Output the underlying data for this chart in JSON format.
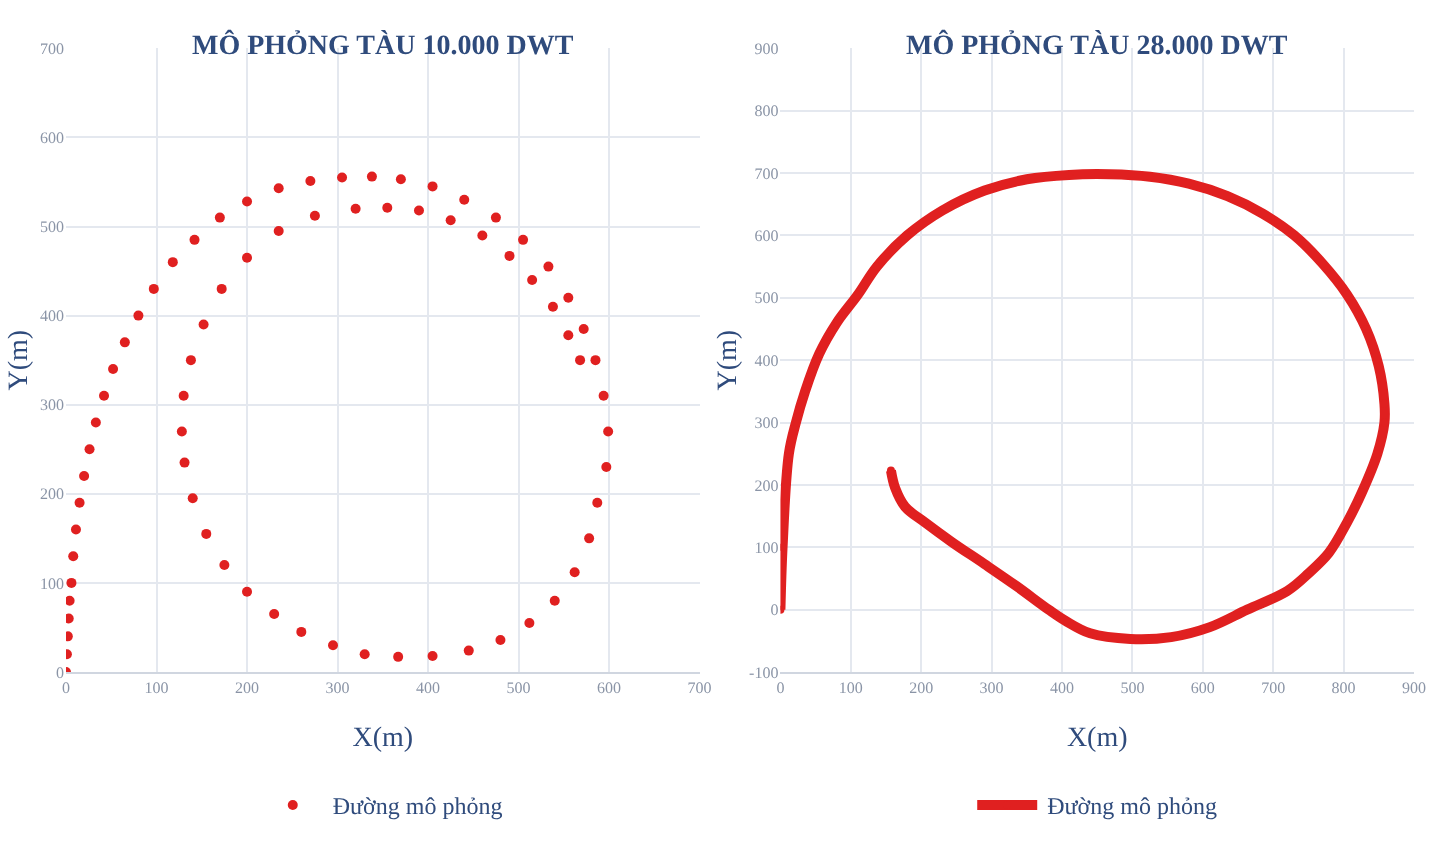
{
  "chart_data": [
    {
      "type": "scatter",
      "title": "MÔ PHỎNG TÀU 10.000 DWT",
      "xlabel": "X(m)",
      "ylabel": "Y(m)",
      "xlim": [
        0,
        700
      ],
      "xticks": [
        0,
        100,
        200,
        300,
        400,
        500,
        600,
        700
      ],
      "ylim": [
        0,
        700
      ],
      "yticks": [
        0,
        100,
        200,
        300,
        400,
        500,
        600,
        700
      ],
      "grid": true,
      "legend": "bottom",
      "marker": "circle",
      "series": [
        {
          "name": "Đường mô phỏng",
          "color": "#e02020",
          "x": [
            0,
            1,
            2,
            3,
            4,
            6,
            8,
            11,
            15,
            20,
            26,
            33,
            42,
            52,
            65,
            80,
            97,
            118,
            142,
            170,
            200,
            235,
            270,
            305,
            338,
            370,
            405,
            440,
            475,
            505,
            533,
            555,
            572,
            585,
            594,
            599,
            597,
            587,
            578,
            562,
            540,
            512,
            480,
            445,
            405,
            367,
            330,
            295,
            260,
            230,
            200,
            175,
            155,
            140,
            131,
            128,
            130,
            138,
            152,
            172,
            200,
            235,
            275,
            320,
            355,
            390,
            425,
            460,
            490,
            515,
            538,
            555,
            568
          ],
          "values": [
            0,
            20,
            40,
            60,
            80,
            100,
            130,
            160,
            190,
            220,
            250,
            280,
            310,
            340,
            370,
            400,
            430,
            460,
            485,
            510,
            528,
            543,
            551,
            555,
            556,
            553,
            545,
            530,
            510,
            485,
            455,
            420,
            385,
            350,
            310,
            270,
            230,
            190,
            150,
            112,
            80,
            55,
            36,
            24,
            18,
            17,
            20,
            30,
            45,
            65,
            90,
            120,
            155,
            195,
            235,
            270,
            310,
            350,
            390,
            430,
            465,
            495,
            512,
            520,
            521,
            518,
            507,
            490,
            467,
            440,
            410,
            378,
            350
          ]
        }
      ]
    },
    {
      "type": "line",
      "title": "MÔ PHỎNG TÀU 28.000 DWT",
      "xlabel": "X(m)",
      "ylabel": "Y(m)",
      "xlim": [
        0,
        900
      ],
      "xticks": [
        0,
        100,
        200,
        300,
        400,
        500,
        600,
        700,
        800,
        900
      ],
      "ylim": [
        -100,
        900
      ],
      "yticks": [
        -100,
        0,
        100,
        200,
        300,
        400,
        500,
        600,
        700,
        800,
        900
      ],
      "grid": true,
      "legend": "bottom",
      "marker": "circle",
      "series": [
        {
          "name": "Đường mô phỏng",
          "color": "#e02020",
          "x": [
            0,
            3,
            12,
            22,
            35,
            55,
            80,
            110,
            137,
            180,
            230,
            290,
            350,
            410,
            468,
            525,
            580,
            635,
            685,
            730,
            770,
            805,
            832,
            850,
            858,
            858,
            848,
            826,
            805,
            779,
            750,
            720,
            663,
            610,
            555,
            497,
            440,
            405,
            381,
            335,
            290,
            244,
            205,
            177,
            163,
            157
          ],
          "values": [
            0,
            100,
            250,
            300,
            350,
            410,
            460,
            505,
            550,
            600,
            640,
            672,
            690,
            697,
            698,
            694,
            683,
            663,
            635,
            600,
            555,
            505,
            450,
            390,
            330,
            300,
            250,
            188,
            140,
            91,
            58,
            30,
            0,
            -28,
            -44,
            -47,
            -38,
            -18,
            0,
            38,
            73,
            108,
            140,
            165,
            195,
            223
          ]
        }
      ]
    }
  ]
}
